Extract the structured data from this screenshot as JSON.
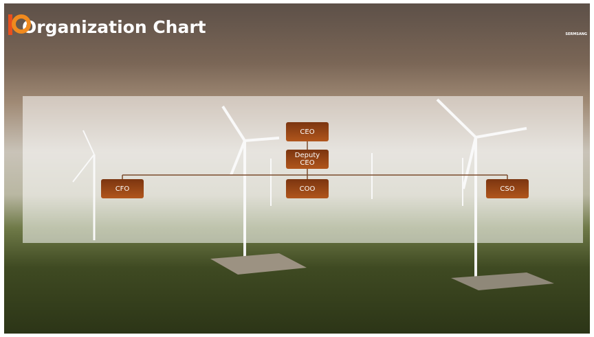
{
  "header": {
    "title": "Organization Chart",
    "logo": "SERMSANG"
  },
  "nodes": [
    {
      "label": "CEO"
    },
    {
      "label": "Deputy CEO"
    },
    {
      "label": "CFO"
    },
    {
      "label": "COO"
    },
    {
      "label": "CSO"
    }
  ]
}
